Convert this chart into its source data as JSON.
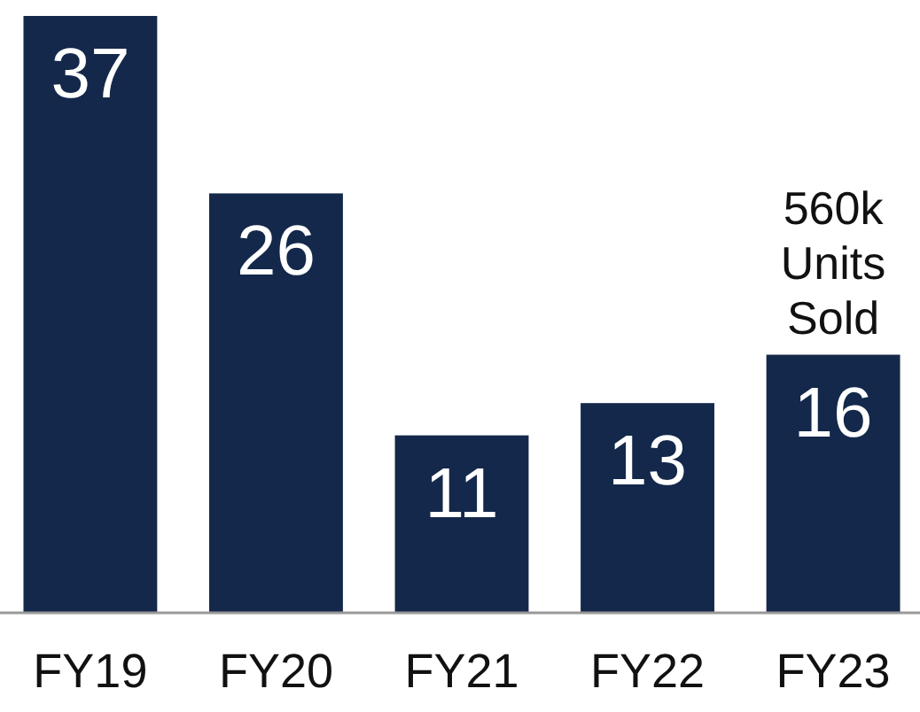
{
  "chart_data": {
    "type": "bar",
    "categories": [
      "FY19",
      "FY20",
      "FY21",
      "FY22",
      "FY23"
    ],
    "values": [
      37,
      26,
      11,
      13,
      16
    ],
    "color": "#14284b",
    "data_labels": true,
    "annotations": [
      {
        "text": "560k Units Sold",
        "x": "FY23",
        "y": 16
      }
    ]
  }
}
